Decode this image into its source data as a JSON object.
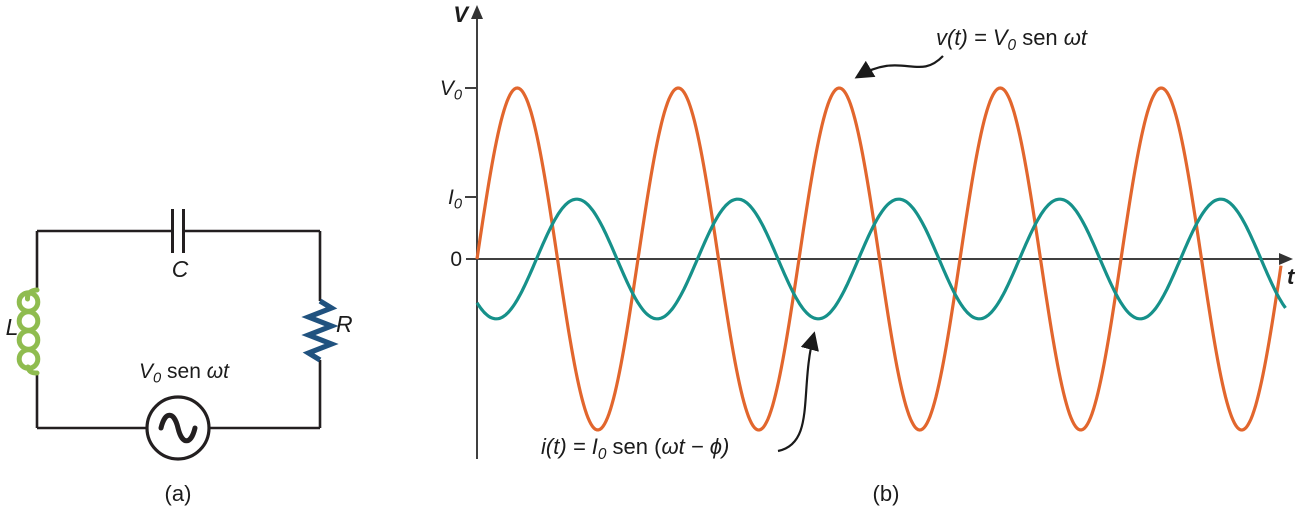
{
  "figure": {
    "caption_a": "(a)",
    "caption_b": "(b)"
  },
  "circuit": {
    "capacitor_label": "C",
    "inductor_label": "L",
    "resistor_label": "R",
    "source_label": {
      "pre": "V",
      "sub": "0",
      "mid": " sen ",
      "post": "ωt"
    },
    "colors": {
      "wire": "#231f20",
      "inductor": "#8fbc4f",
      "resistor": "#20527f"
    }
  },
  "graph": {
    "y_axis_label": "V",
    "x_axis_label": "t",
    "y_tick_v": {
      "main": "V",
      "sub": "0"
    },
    "y_tick_i": {
      "main": "I",
      "sub": "0"
    },
    "origin_label": "0",
    "annotation_voltage": {
      "pre": "v(t) = V",
      "sub": "0",
      "mid": " sen ",
      "post": "ωt"
    },
    "annotation_current": {
      "pre": "i(t) = I",
      "sub": "0",
      "mid": " sen (",
      "post": "ωt − ϕ)"
    },
    "axis_color": "#404040"
  },
  "chart_data": {
    "type": "line",
    "title": "",
    "xlabel": "t",
    "ylabel": "V",
    "x_unit": "periods of ωt",
    "x_range": [
      0,
      5.05
    ],
    "y_ticks": [
      {
        "label": "V0",
        "value": 1.0
      },
      {
        "label": "I0",
        "value": 0.35
      },
      {
        "label": "0",
        "value": 0.0
      }
    ],
    "grid": false,
    "legend_position": "inline-annotations",
    "series": [
      {
        "id": "voltage-wave",
        "name": "v(t) = V0 sen ωt",
        "amplitude": 1.0,
        "phase_deg": 0,
        "cycles": 5.0,
        "color": "#e2662d"
      },
      {
        "id": "current-wave",
        "name": "i(t) = I0 sen (ωt − φ)",
        "amplitude": 0.35,
        "phase_deg": 133,
        "cycles": 5.03,
        "color": "#16918a"
      }
    ]
  }
}
